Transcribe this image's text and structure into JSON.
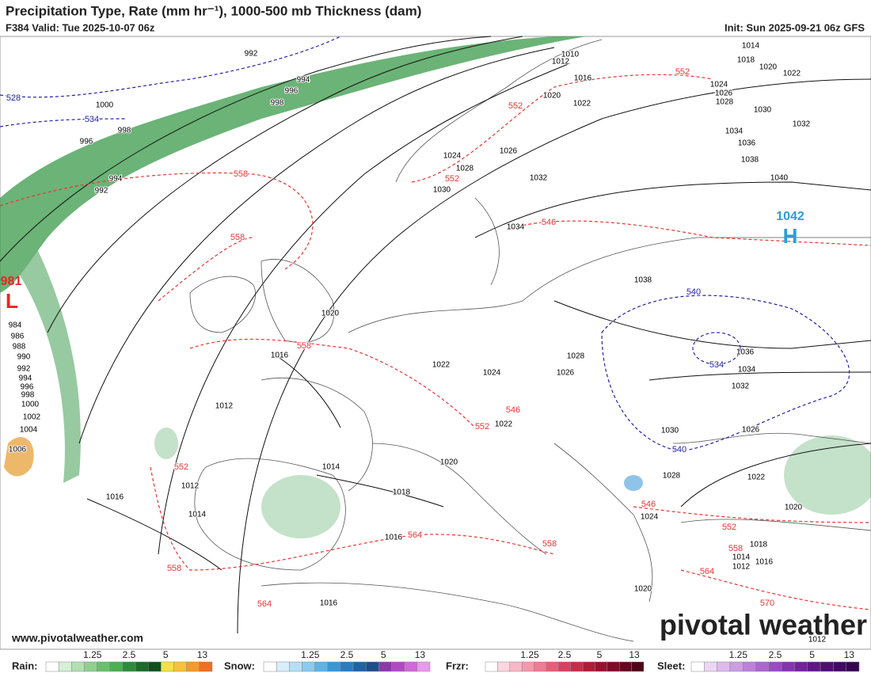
{
  "header": {
    "title": "Precipitation Type, Rate (mm hr⁻¹), 1000-500 mb Thickness (dam)",
    "valid": "F384 Valid: Tue 2025-10-07 06z",
    "init": "Init: Sun 2025-09-21 06z GFS"
  },
  "pressure_labels": [
    992,
    994,
    996,
    998,
    1000,
    998,
    996,
    994,
    992,
    1010,
    1012,
    1016,
    1020,
    1022,
    1014,
    1018,
    1020,
    1022,
    1024,
    1026,
    1028,
    1030,
    1032,
    1034,
    1036,
    1038,
    1040,
    1024,
    1026,
    1028,
    1032,
    1030,
    1034,
    1038,
    1020,
    1016,
    1022,
    1024,
    1026,
    1028,
    1036,
    1034,
    1032,
    1030,
    1026,
    1012,
    1014,
    1020,
    1018,
    1016,
    1012,
    1014,
    1016,
    1028,
    1024,
    1022,
    1020,
    1018,
    1016,
    1014,
    1012,
    1020,
    1016,
    1012,
    1022,
    984,
    986,
    988,
    990,
    992,
    994,
    996,
    998,
    1000,
    1002,
    1004,
    1006
  ],
  "thickness_labels": [
    558,
    558,
    552,
    552,
    552,
    546,
    558,
    546,
    552,
    552,
    558,
    564,
    558,
    564,
    546,
    552,
    558,
    564,
    570,
    528,
    534,
    540,
    534,
    540
  ],
  "high": {
    "pressure": 1042,
    "letter": "H"
  },
  "low": {
    "pressure": 981,
    "letter": "L"
  },
  "legend": [
    {
      "label": "Rain:",
      "ticks": [
        1.25,
        2.5,
        5,
        13
      ]
    },
    {
      "label": "Snow:",
      "ticks": [
        1.25,
        2.5,
        5,
        13
      ]
    },
    {
      "label": "Frzr:",
      "ticks": [
        1.25,
        2.5,
        5,
        13
      ]
    },
    {
      "label": "Sleet:",
      "ticks": [
        1.25,
        2.5,
        5,
        13
      ]
    }
  ],
  "footer": {
    "website": "www.pivotalweather.com",
    "brand": "pivotal weather"
  }
}
